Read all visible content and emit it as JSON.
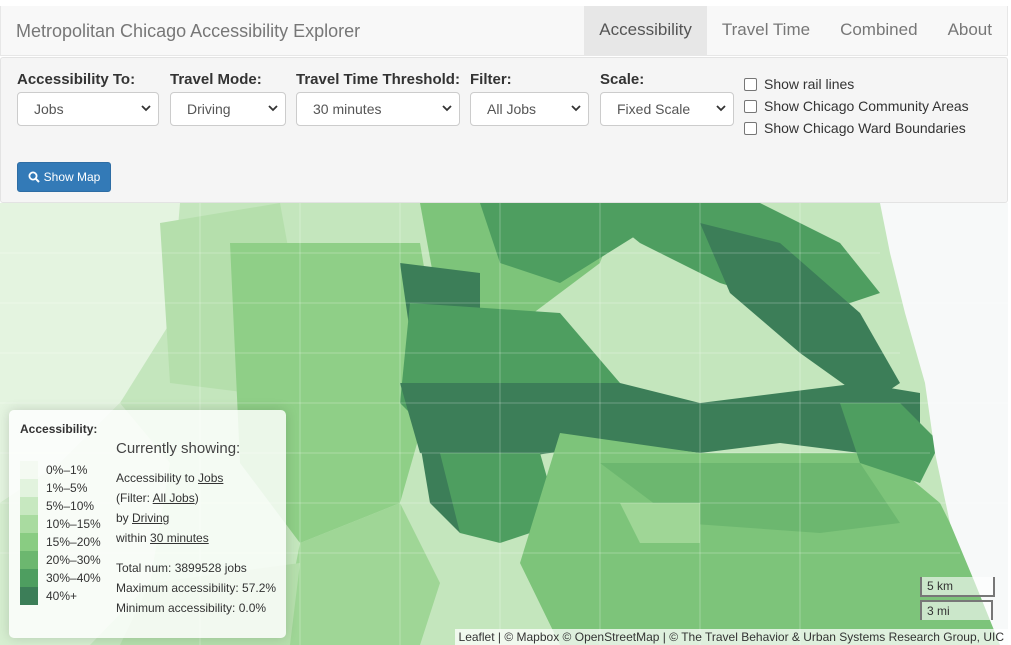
{
  "brand": "Metropolitan Chicago Accessibility Explorer",
  "nav": [
    "Accessibility",
    "Travel Time",
    "Combined",
    "About"
  ],
  "controls": {
    "access_label": "Accessibility To:",
    "access_value": "Jobs",
    "mode_label": "Travel Mode:",
    "mode_value": "Driving",
    "threshold_label": "Travel Time Threshold:",
    "threshold_value": "30 minutes",
    "filter_label": "Filter:",
    "filter_value": "All Jobs",
    "scale_label": "Scale:",
    "scale_value": "Fixed Scale",
    "checks": [
      "Show rail lines",
      "Show Chicago Community Areas",
      "Show Chicago Ward Boundaries"
    ],
    "show_map": "Show Map"
  },
  "legend": {
    "title": "Accessibility:",
    "classes": [
      "0%–1%",
      "1%–5%",
      "5%–10%",
      "10%–15%",
      "15%–20%",
      "20%–30%",
      "30%–40%",
      "40%+"
    ],
    "colors": [
      "#f4faf2",
      "#e2f3de",
      "#c7e8c0",
      "#a9dba0",
      "#89cc82",
      "#6cb76f",
      "#4e9e60",
      "#3c7e58"
    ],
    "heading": "Currently showing:",
    "line1_pre": "Accessibility to ",
    "line1_link": "Jobs",
    "line2_pre": "(Filter: ",
    "line2_link": "All Jobs",
    "line2_post": ")",
    "line3_pre": "by ",
    "line3_link": "Driving",
    "line4_pre": "within ",
    "line4_link": "30 minutes",
    "total": "Total num: 3899528 jobs",
    "max": "Maximum accessibility: 57.2%",
    "min": "Minimum accessibility: 0.0%"
  },
  "scale": {
    "metric": "5 km",
    "imperial": "3 mi"
  },
  "attribution": {
    "leaflet": "Leaflet",
    "sep1": " | © ",
    "mapbox": "Mapbox",
    "sep2": " © ",
    "osm": "OpenStreetMap",
    "rest": " | © The Travel Behavior & Urban Systems Research Group, UIC"
  }
}
